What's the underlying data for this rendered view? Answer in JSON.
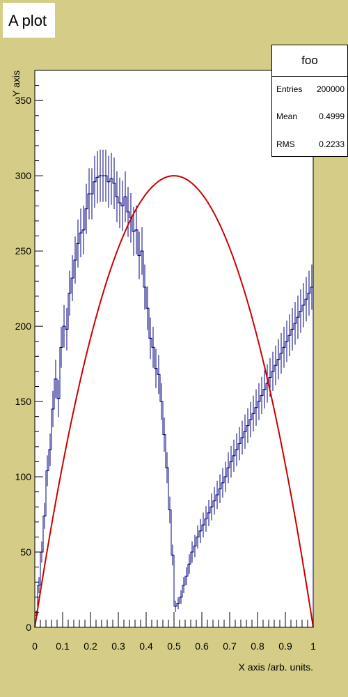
{
  "title": "A plot",
  "stats": {
    "name": "foo",
    "entries_label": "Entries",
    "entries_value": "200000",
    "mean_label": "Mean",
    "mean_value": "0.4999",
    "rms_label": "RMS",
    "rms_value": "0.2233"
  },
  "colors": {
    "background": "#d5cd87",
    "histogram": "#000080",
    "fit": "#cc0000"
  },
  "chart_data": {
    "type": "bar",
    "histogram_name": "foo",
    "title": "A plot",
    "xlabel": "X axis /arb. units.",
    "ylabel": "Y axis",
    "xlim": [
      0,
      1
    ],
    "ylim": [
      0,
      370
    ],
    "x_ticks": [
      0,
      0.1,
      0.2,
      0.3,
      0.4,
      0.5,
      0.6,
      0.7,
      0.8,
      0.9,
      1
    ],
    "x_tick_labels": [
      "0",
      "0.1",
      "0.2",
      "0.3",
      "0.4",
      "0.5",
      "0.6",
      "0.7",
      "0.8",
      "0.9",
      "1"
    ],
    "y_ticks": [
      0,
      50,
      100,
      150,
      200,
      250,
      300,
      350
    ],
    "y_tick_labels": [
      "0",
      "50",
      "100",
      "150",
      "200",
      "250",
      "300",
      "350"
    ],
    "bin_width": 0.01,
    "values": [
      8,
      28,
      50,
      74,
      104,
      118,
      145,
      165,
      152,
      186,
      200,
      198,
      222,
      232,
      244,
      255,
      262,
      264,
      278,
      288,
      288,
      296,
      299,
      300,
      300,
      300,
      296,
      298,
      295,
      286,
      282,
      280,
      286,
      276,
      272,
      263,
      264,
      247,
      250,
      226,
      212,
      192,
      186,
      172,
      168,
      150,
      128,
      106,
      78,
      48,
      14,
      16,
      20,
      28,
      34,
      42,
      50,
      54,
      60,
      64,
      68,
      72,
      76,
      80,
      84,
      88,
      92,
      96,
      100,
      106,
      110,
      114,
      118,
      122,
      126,
      130,
      134,
      138,
      142,
      146,
      150,
      154,
      158,
      162,
      166,
      170,
      174,
      178,
      182,
      186,
      190,
      194,
      198,
      202,
      206,
      210,
      214,
      218,
      222,
      226
    ],
    "fit": {
      "name": "fit",
      "function": "1200*x*(1-x)"
    }
  }
}
